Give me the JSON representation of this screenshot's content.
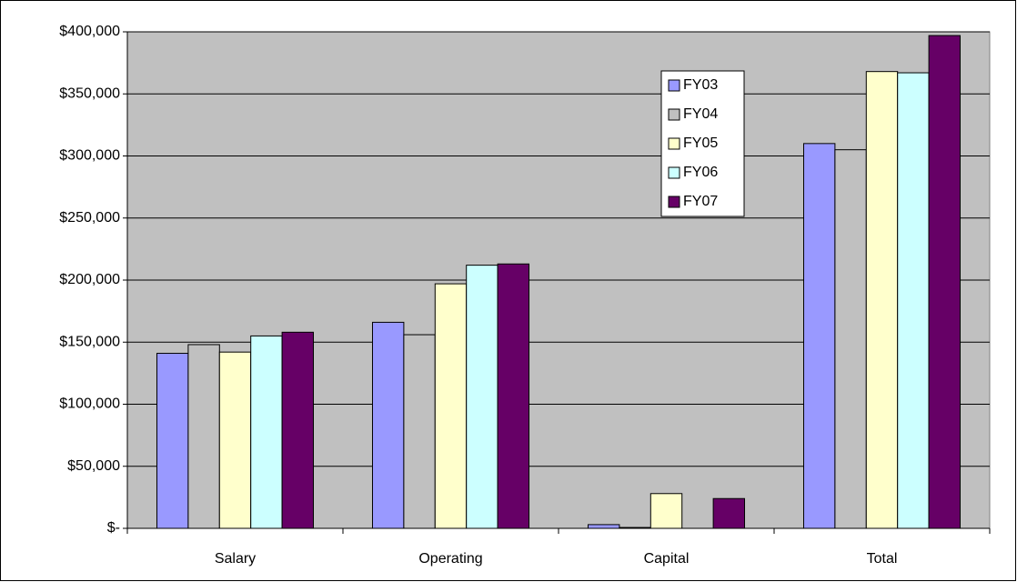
{
  "chart_data": {
    "type": "bar",
    "categories": [
      "Salary",
      "Operating",
      "Capital",
      "Total"
    ],
    "series": [
      {
        "name": "FY03",
        "color": "#9999ff",
        "values": [
          141000,
          166000,
          3000,
          310000
        ]
      },
      {
        "name": "FY04",
        "color": "#c0c0c0",
        "values": [
          148000,
          156000,
          700,
          305000
        ]
      },
      {
        "name": "FY05",
        "color": "#ffffcc",
        "values": [
          142000,
          197000,
          28000,
          368000
        ]
      },
      {
        "name": "FY06",
        "color": "#ccffff",
        "values": [
          155000,
          212000,
          0,
          367000
        ]
      },
      {
        "name": "FY07",
        "color": "#660066",
        "values": [
          158000,
          213000,
          24000,
          397000
        ]
      }
    ],
    "ylim": [
      0,
      400000
    ],
    "yticks": [
      {
        "value": 0,
        "label": "$-"
      },
      {
        "value": 50000,
        "label": "$50,000"
      },
      {
        "value": 100000,
        "label": "$100,000"
      },
      {
        "value": 150000,
        "label": "$150,000"
      },
      {
        "value": 200000,
        "label": "$200,000"
      },
      {
        "value": 250000,
        "label": "$250,000"
      },
      {
        "value": 300000,
        "label": "$300,000"
      },
      {
        "value": 350000,
        "label": "$350,000"
      },
      {
        "value": 400000,
        "label": "$400,000"
      }
    ],
    "grid": true,
    "plot_background": "#c0c0c0",
    "legend": "right"
  }
}
